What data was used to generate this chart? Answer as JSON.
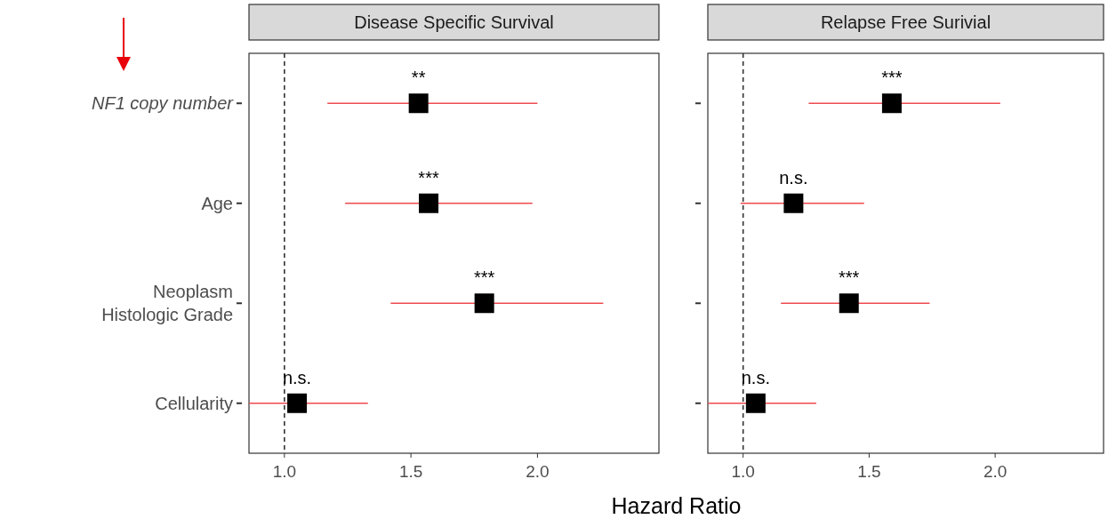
{
  "chart_data": [
    {
      "type": "scatter",
      "title": "Disease Specific Survival",
      "xlabel": "Hazard Ratio",
      "orientation": "horizontal",
      "categories": [
        "NF1 copy number",
        "Age",
        "Neoplasm Histologic Grade",
        "Cellularity"
      ],
      "marker": "square",
      "grid": false,
      "xlim": [
        0.86,
        2.48
      ],
      "xticks": [
        {
          "value": 1,
          "label": "1.0"
        },
        {
          "value": 1.5,
          "label": "1.5"
        },
        {
          "value": 2,
          "label": "2.0"
        }
      ],
      "series": [
        {
          "color": "#000000",
          "values": [
            1.53,
            1.57,
            1.79,
            1.05
          ],
          "errors": [
            [
              1.17,
              2.0
            ],
            [
              1.24,
              1.98
            ],
            [
              1.42,
              2.26
            ],
            [
              0.86,
              1.33
            ]
          ]
        }
      ],
      "ref_lines": [
        {
          "axis": "x",
          "value": 1,
          "line_style": "dashed",
          "color": "#333333"
        }
      ],
      "annotations": [
        {
          "text": "**",
          "x": 1.53,
          "y": "NF1 copy number"
        },
        {
          "text": "***",
          "x": 1.57,
          "y": "Age"
        },
        {
          "text": "***",
          "x": 1.79,
          "y": "Neoplasm Histologic Grade"
        },
        {
          "text": "n.s.",
          "x": 1.05,
          "y": "Cellularity"
        }
      ]
    },
    {
      "type": "scatter",
      "title": "Relapse Free Surivial",
      "orientation": "horizontal",
      "categories": [
        "NF1 copy number",
        "Age",
        "Neoplasm Histologic Grade",
        "Cellularity"
      ],
      "marker": "square",
      "grid": false,
      "tick_labels": "x",
      "xlim": [
        0.86,
        2.43
      ],
      "xticks": [
        {
          "value": 1,
          "label": "1.0"
        },
        {
          "value": 1.5,
          "label": "1.5"
        },
        {
          "value": 2,
          "label": "2.0"
        }
      ],
      "series": [
        {
          "color": "#000000",
          "values": [
            1.59,
            1.2,
            1.42,
            1.05
          ],
          "errors": [
            [
              1.26,
              2.02
            ],
            [
              0.99,
              1.48
            ],
            [
              1.15,
              1.74
            ],
            [
              0.86,
              1.29
            ]
          ]
        }
      ],
      "ref_lines": [
        {
          "axis": "x",
          "value": 1,
          "line_style": "dashed",
          "color": "#333333"
        }
      ],
      "annotations": [
        {
          "text": "***",
          "x": 1.59,
          "y": "NF1 copy number"
        },
        {
          "text": "n.s.",
          "x": 1.2,
          "y": "Age"
        },
        {
          "text": "***",
          "x": 1.42,
          "y": "Neoplasm Histologic Grade"
        },
        {
          "text": "n.s.",
          "x": 1.05,
          "y": "Cellularity"
        }
      ]
    }
  ]
}
